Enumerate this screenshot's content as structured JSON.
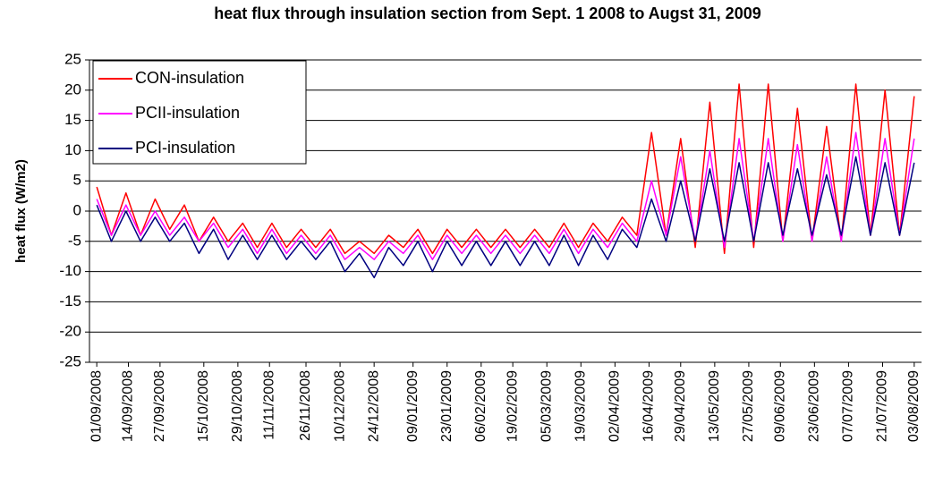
{
  "chart_data": {
    "type": "line",
    "title": "heat flux through insulation section from Sept. 1 2008 to Augst 31, 2009",
    "y_label": "heat flux (W/m2)",
    "x": [
      "01/09/2008",
      "07/09/2008",
      "13/09/2008",
      "19/09/2008",
      "25/09/2008",
      "01/10/2008",
      "07/10/2008",
      "13/10/2008",
      "19/10/2008",
      "25/10/2008",
      "31/10/2008",
      "06/11/2008",
      "12/11/2008",
      "18/11/2008",
      "24/11/2008",
      "30/11/2008",
      "06/12/2008",
      "12/12/2008",
      "18/12/2008",
      "24/12/2008",
      "30/12/2008",
      "05/01/2009",
      "11/01/2009",
      "17/01/2009",
      "23/01/2009",
      "29/01/2009",
      "04/02/2009",
      "10/02/2009",
      "16/02/2009",
      "22/02/2009",
      "28/02/2009",
      "06/03/2009",
      "12/03/2009",
      "18/03/2009",
      "24/03/2009",
      "30/03/2009",
      "05/04/2009",
      "11/04/2009",
      "17/04/2009",
      "23/04/2009",
      "29/04/2009",
      "05/05/2009",
      "11/05/2009",
      "17/05/2009",
      "23/05/2009",
      "29/05/2009",
      "04/06/2009",
      "10/06/2009",
      "16/06/2009",
      "22/06/2009",
      "28/06/2009",
      "04/07/2009",
      "10/07/2009",
      "16/07/2009",
      "22/07/2009",
      "28/07/2009",
      "03/08/2009"
    ],
    "series": [
      {
        "name": "CON-insulation",
        "color": "#ff0000",
        "values": [
          4,
          -4,
          3,
          -4,
          2,
          -3,
          1,
          -5,
          -1,
          -5,
          -2,
          -6,
          -2,
          -6,
          -3,
          -6,
          -3,
          -7,
          -5,
          -7,
          -4,
          -6,
          -3,
          -7,
          -3,
          -6,
          -3,
          -6,
          -3,
          -6,
          -3,
          -6,
          -2,
          -6,
          -2,
          -5,
          -1,
          -4,
          13,
          -4,
          12,
          -6,
          18,
          -7,
          21,
          -6,
          21,
          -5,
          17,
          -5,
          14,
          -5,
          21,
          -4,
          20,
          -4,
          19
        ]
      },
      {
        "name": "PCII-insulation",
        "color": "#ff00ff",
        "values": [
          2,
          -4,
          1,
          -4,
          0,
          -4,
          -1,
          -5,
          -2,
          -6,
          -3,
          -7,
          -3,
          -7,
          -4,
          -7,
          -4,
          -8,
          -6,
          -8,
          -5,
          -7,
          -4,
          -8,
          -4,
          -7,
          -4,
          -7,
          -4,
          -7,
          -4,
          -7,
          -3,
          -7,
          -3,
          -6,
          -2,
          -5,
          5,
          -4,
          9,
          -5,
          10,
          -6,
          12,
          -5,
          12,
          -5,
          11,
          -5,
          9,
          -5,
          13,
          -4,
          12,
          -4,
          12
        ]
      },
      {
        "name": "PCI-insulation",
        "color": "#000080",
        "values": [
          1,
          -5,
          0,
          -5,
          -1,
          -5,
          -2,
          -7,
          -3,
          -8,
          -4,
          -8,
          -4,
          -8,
          -5,
          -8,
          -5,
          -10,
          -7,
          -11,
          -6,
          -9,
          -5,
          -10,
          -5,
          -9,
          -5,
          -9,
          -5,
          -9,
          -5,
          -9,
          -4,
          -9,
          -4,
          -8,
          -3,
          -6,
          2,
          -5,
          5,
          -5,
          7,
          -5,
          8,
          -5,
          8,
          -4,
          7,
          -4,
          6,
          -4,
          9,
          -4,
          8,
          -4,
          8
        ]
      }
    ],
    "xlim": [
      "29/08/2008",
      "06/08/2009"
    ],
    "xticks": [
      "01/09/2008",
      "14/09/2008",
      "27/09/2008",
      "15/10/2008",
      "29/10/2008",
      "11/11/2008",
      "26/11/2008",
      "10/12/2008",
      "24/12/2008",
      "09/01/2009",
      "23/01/2009",
      "06/02/2009",
      "19/02/2009",
      "05/03/2009",
      "19/03/2009",
      "02/04/2009",
      "16/04/2009",
      "29/04/2009",
      "13/05/2009",
      "27/05/2009",
      "09/06/2009",
      "23/06/2009",
      "07/07/2009",
      "21/07/2009",
      "03/08/2009"
    ],
    "ylim": [
      -25,
      25
    ],
    "yticks": [
      -25,
      -20,
      -15,
      -10,
      -5,
      0,
      5,
      10,
      15,
      20,
      25
    ],
    "grid": true,
    "legend": "top-left"
  }
}
